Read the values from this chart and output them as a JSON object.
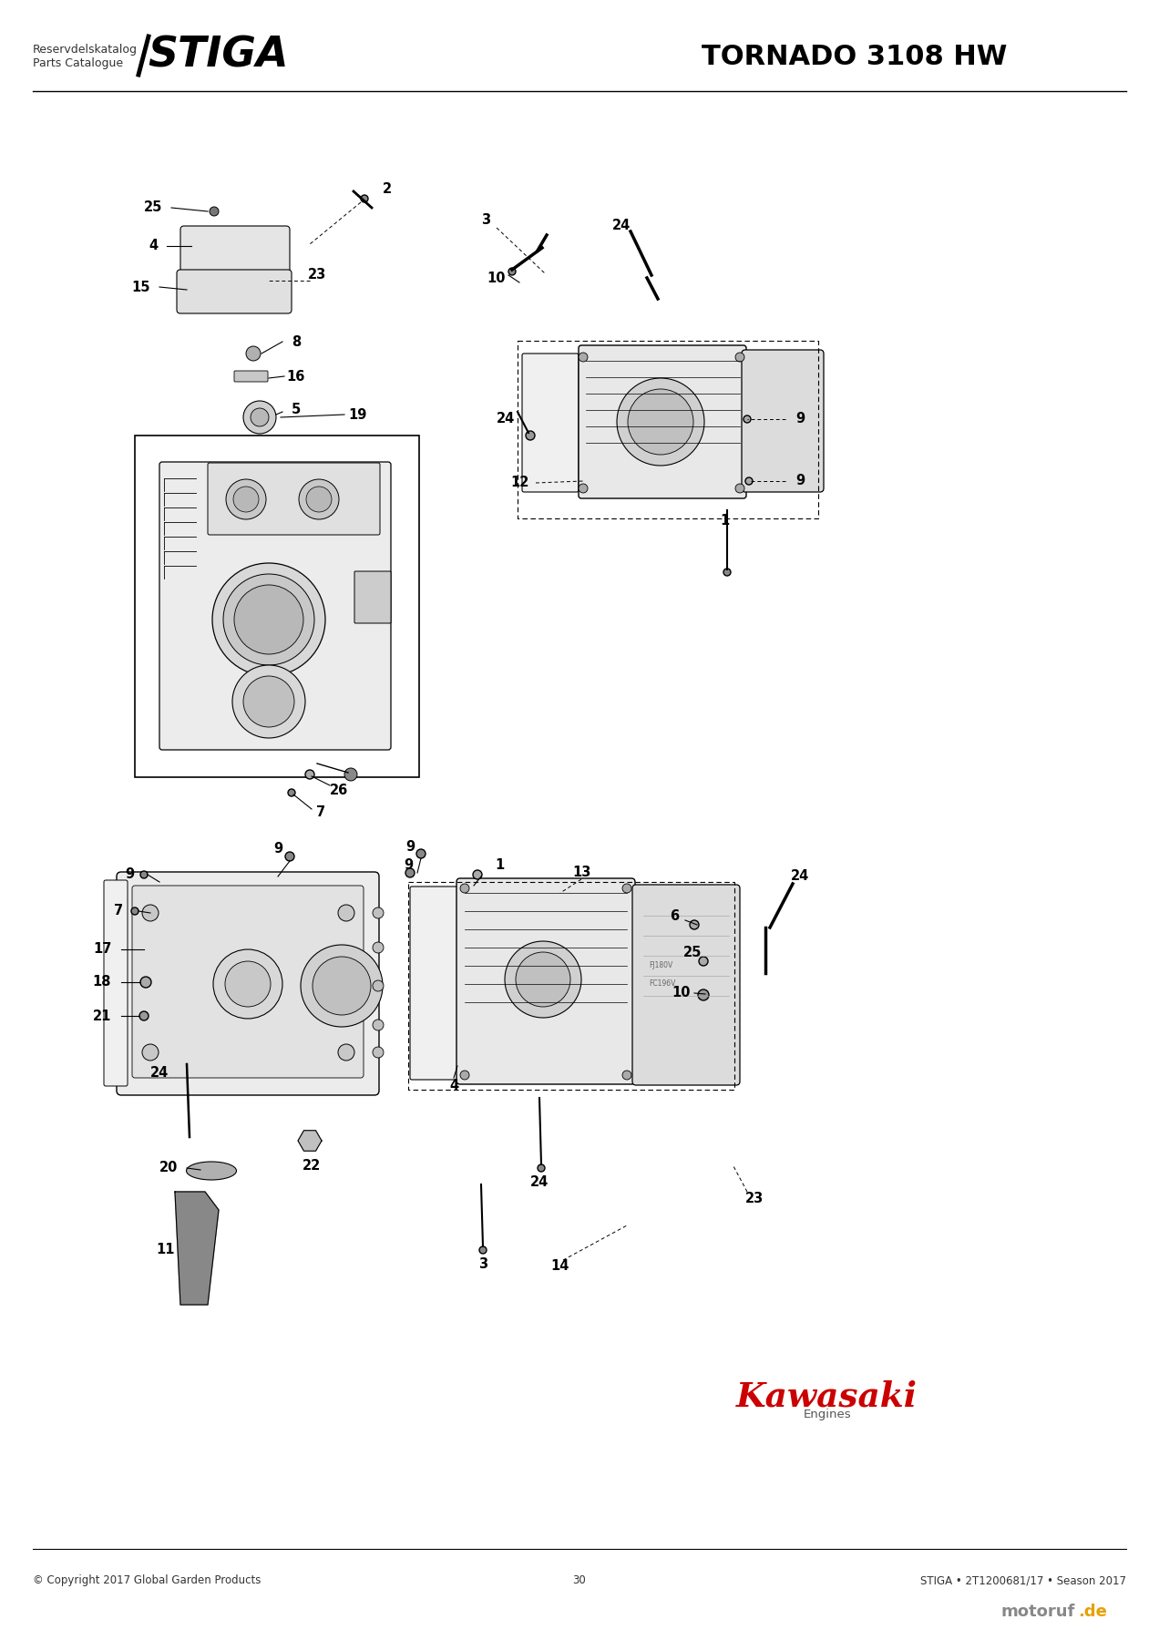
{
  "page_title": "TORNADO 3108 HW",
  "logo_text1": "Reservdelskatalog",
  "logo_text2": "Parts Catalogue",
  "logo_brand": "STIGA",
  "footer_left": "© Copyright 2017 Global Garden Products",
  "footer_center": "30",
  "footer_right": "STIGA • 2T1200681/17 • Season 2017",
  "kawasaki_text": "Kawasaki",
  "kawasaki_sub": "Engines",
  "bg_color": "#ffffff",
  "line_color": "#000000",
  "separator_color": "#000000"
}
